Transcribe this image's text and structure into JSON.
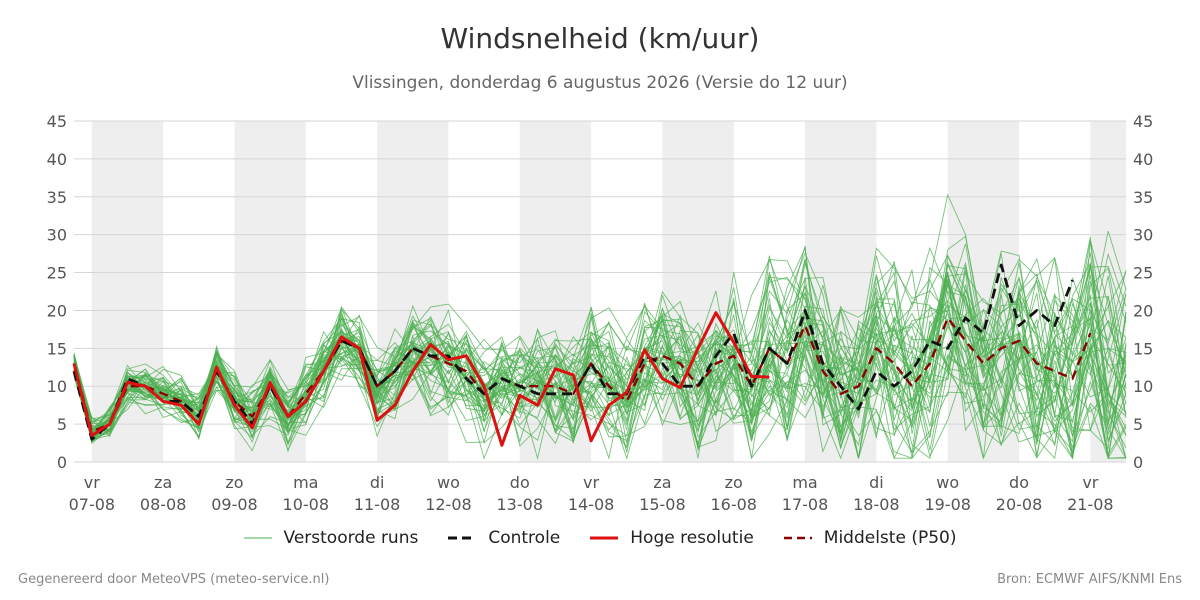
{
  "title": "Windsnelheid (km/uur)",
  "subtitle": "Vlissingen, donderdag  6 augustus 2026 (Versie do 12 uur)",
  "footer": {
    "left": "Gegenereerd door MeteoVPS (meteo-service.nl)",
    "right": "Bron: ECMWF AIFS/KNMI Ens"
  },
  "legend": [
    {
      "label": "Verstoorde runs",
      "color": "#4caf50",
      "style": "thin-solid"
    },
    {
      "label": "Controle",
      "color": "#111111",
      "style": "dashed"
    },
    {
      "label": "Hoge resolutie",
      "color": "#dd1111",
      "style": "solid"
    },
    {
      "label": "Middelste (P50)",
      "color": "#8b0000",
      "style": "dashed"
    }
  ],
  "chart_data": {
    "type": "line",
    "title": "Windsnelheid (km/uur)",
    "ylim": [
      0,
      45
    ],
    "yticks": [
      0,
      5,
      10,
      15,
      20,
      25,
      30,
      35,
      40,
      45
    ],
    "xlim": [
      -0.25,
      14.5
    ],
    "x_ticks": [
      {
        "day": "vr",
        "date": "07-08"
      },
      {
        "day": "za",
        "date": "08-08"
      },
      {
        "day": "zo",
        "date": "09-08"
      },
      {
        "day": "ma",
        "date": "10-08"
      },
      {
        "day": "di",
        "date": "11-08"
      },
      {
        "day": "wo",
        "date": "12-08"
      },
      {
        "day": "do",
        "date": "13-08"
      },
      {
        "day": "vr",
        "date": "14-08"
      },
      {
        "day": "za",
        "date": "15-08"
      },
      {
        "day": "zo",
        "date": "16-08"
      },
      {
        "day": "ma",
        "date": "17-08"
      },
      {
        "day": "di",
        "date": "18-08"
      },
      {
        "day": "wo",
        "date": "19-08"
      },
      {
        "day": "do",
        "date": "20-08"
      },
      {
        "day": "vr",
        "date": "21-08"
      }
    ],
    "shaded_days": [
      0,
      2,
      4,
      6,
      8,
      10,
      12,
      14
    ],
    "grid": true,
    "legend_position": "bottom",
    "colors": {
      "ensemble": "#4caf50",
      "control": "#111111",
      "hires": "#dd1111",
      "p50": "#8b0000",
      "shade": "#eeeeee"
    },
    "series": [
      {
        "name": "Controle",
        "x": [
          -0.25,
          0,
          0.25,
          0.5,
          0.75,
          1,
          1.25,
          1.5,
          1.75,
          2,
          2.25,
          2.5,
          2.75,
          3,
          3.25,
          3.5,
          3.75,
          4,
          4.25,
          4.5,
          4.75,
          5,
          5.25,
          5.5,
          5.75,
          6,
          6.25,
          6.5,
          6.75,
          7,
          7.25,
          7.5,
          7.75,
          8,
          8.25,
          8.5,
          8.75,
          9,
          9.25,
          9.5,
          9.75,
          10,
          10.25,
          10.5,
          10.75,
          11,
          11.25,
          11.5,
          11.75,
          12,
          12.25,
          12.5,
          12.75,
          13,
          13.25,
          13.5,
          13.75,
          14,
          14.25,
          14.5
        ],
        "values": [
          12,
          3,
          5,
          11,
          10,
          8,
          8,
          6,
          12,
          8,
          5,
          10,
          6,
          8,
          12,
          16,
          15,
          10,
          12,
          15,
          14,
          14,
          11,
          9,
          11,
          10,
          9,
          9,
          9,
          13,
          9,
          9,
          14,
          13,
          10,
          10,
          14,
          17,
          10,
          15,
          13,
          20,
          13,
          10,
          7,
          12,
          10,
          12,
          16,
          15,
          19,
          17,
          26,
          18,
          20,
          18,
          24,
          null,
          null,
          null
        ]
      },
      {
        "name": "Hoge resolutie",
        "x": [
          -0.25,
          0,
          0.25,
          0.5,
          0.75,
          1,
          1.25,
          1.5,
          1.75,
          2,
          2.25,
          2.5,
          2.75,
          3,
          3.25,
          3.5,
          3.75,
          4,
          4.25,
          4.5,
          4.75,
          5,
          5.25,
          5.5,
          5.75,
          6,
          6.25,
          6.5,
          6.75,
          7,
          7.25,
          7.5,
          7.75,
          8,
          8.25,
          8.5,
          8.75,
          9,
          9.25,
          9.5
        ],
        "values": [
          13,
          3.5,
          5,
          10.5,
          10,
          8,
          7.5,
          5,
          12.5,
          7.5,
          4.5,
          10.5,
          6,
          8,
          12,
          16.5,
          15,
          5.5,
          7.5,
          12,
          15.5,
          13.5,
          14,
          10,
          2.2,
          8.8,
          7.5,
          12.3,
          11.5,
          2.8,
          7.5,
          9.2,
          14.8,
          11,
          9.8,
          15,
          19.7,
          15.8,
          11.3,
          11.2
        ]
      },
      {
        "name": "Middelste (P50)",
        "x": [
          -0.25,
          0,
          0.25,
          0.5,
          0.75,
          1,
          1.25,
          1.5,
          1.75,
          2,
          2.25,
          2.5,
          2.75,
          3,
          3.25,
          3.5,
          3.75,
          4,
          4.25,
          4.5,
          4.75,
          5,
          5.25,
          5.5,
          5.75,
          6,
          6.25,
          6.5,
          6.75,
          7,
          7.25,
          7.5,
          7.75,
          8,
          8.25,
          8.5,
          8.75,
          9,
          9.25,
          9.5,
          9.75,
          10,
          10.25,
          10.5,
          10.75,
          11,
          11.25,
          11.5,
          11.75,
          12,
          12.25,
          12.5,
          12.75,
          13,
          13.25,
          13.5,
          13.75,
          14,
          14.25,
          14.5
        ],
        "values": [
          13,
          4,
          5,
          10,
          10,
          9,
          8,
          6,
          12,
          8,
          6,
          10,
          6,
          9,
          12,
          16,
          15,
          10,
          12,
          15,
          14,
          13,
          12,
          9,
          11,
          10,
          10,
          10,
          9,
          13,
          10,
          8,
          13,
          14,
          13,
          10,
          13,
          14,
          10,
          15,
          13,
          18,
          12,
          9,
          10,
          15,
          13,
          10,
          13,
          19,
          16,
          13,
          15,
          16,
          13,
          12,
          11,
          17,
          null,
          null
        ]
      }
    ]
  }
}
